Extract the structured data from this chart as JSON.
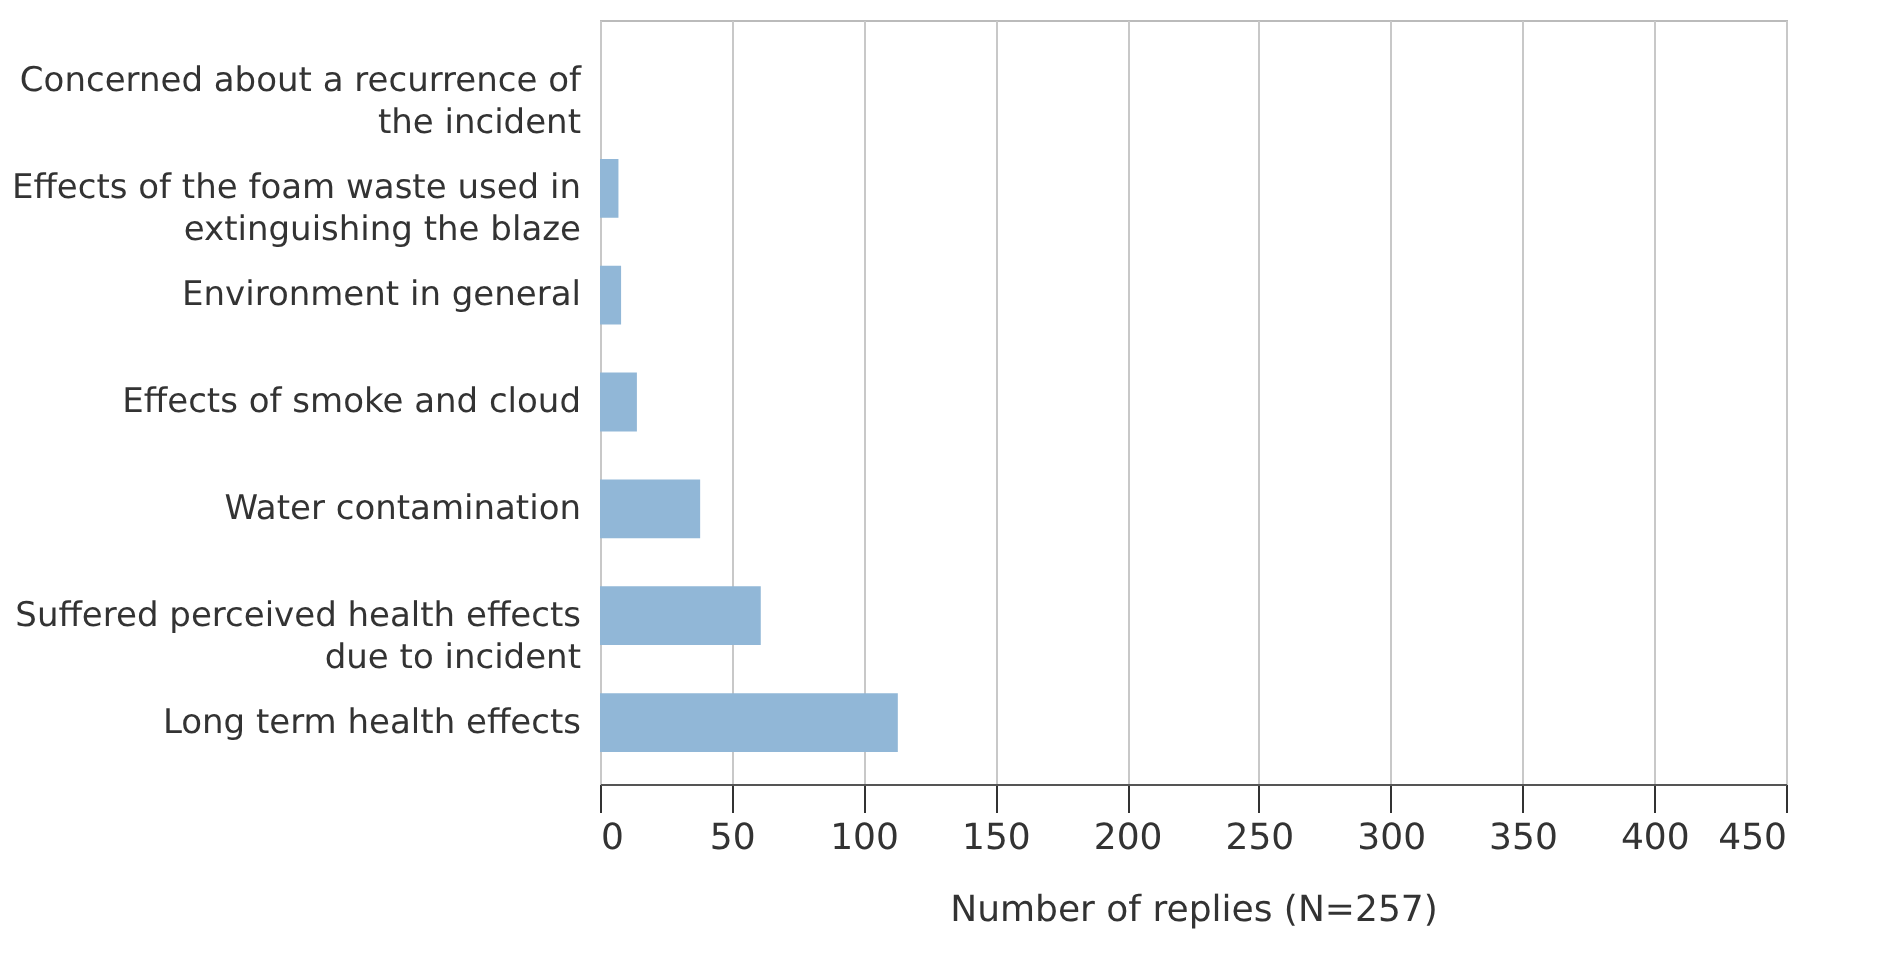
{
  "chart_data": {
    "type": "bar",
    "orientation": "horizontal",
    "xlabel": "Number of replies (N=257)",
    "categories": [
      "Concerned about a recurrence of the incident",
      "Effects of the foam waste used in extinguishing the blaze",
      "Environment in general",
      "Effects of smoke and cloud",
      "Water contamination",
      "Suffered perceived health effects due to incident",
      "Long term health effects"
    ],
    "values": [
      0,
      7,
      8,
      14,
      38,
      61,
      113
    ],
    "color": "#91b7d7",
    "xlim": [
      0,
      450
    ],
    "xticks": [
      0,
      50,
      100,
      150,
      200,
      250,
      300,
      350,
      400,
      450
    ],
    "grid": "x"
  }
}
